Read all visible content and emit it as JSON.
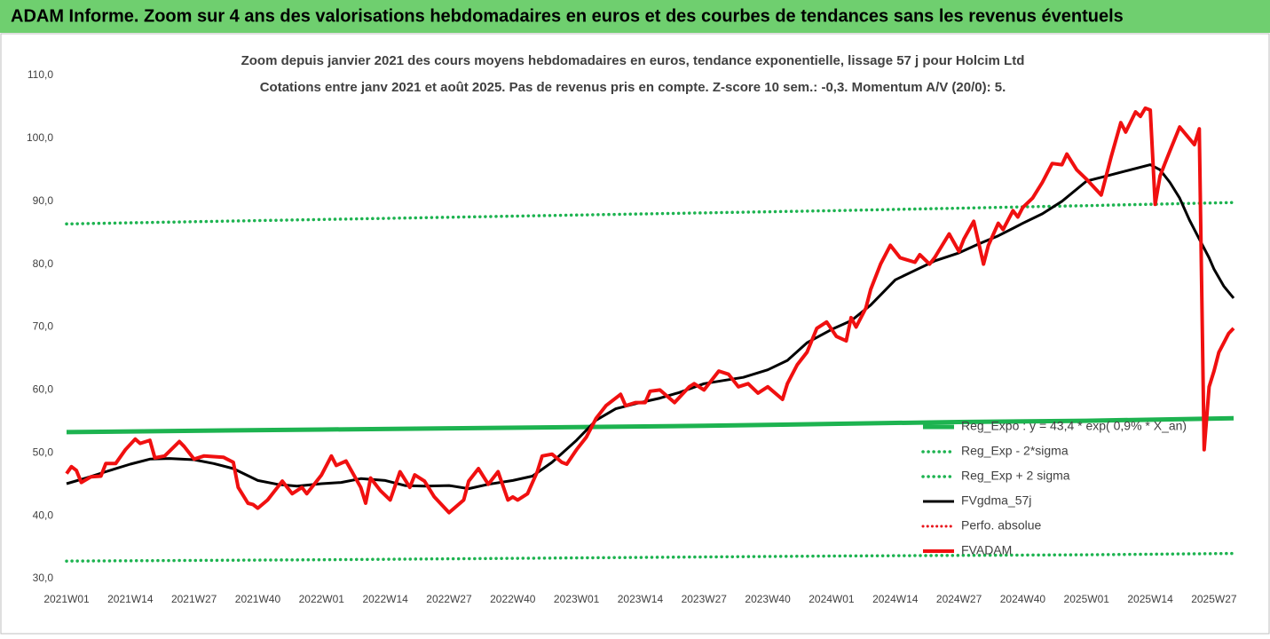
{
  "chart_data": {
    "type": "line",
    "title": "ADAM Informe. Zoom sur 4 ans des valorisations hebdomadaires en euros et des courbes de tendances sans les revenus éventuels",
    "subtitle": [
      "Zoom depuis janvier 2021 des cours moyens hebdomadaires en euros, tendance exponentielle, lissage 57 j pour Holcim Ltd",
      "Cotations entre janv 2021 et août 2025. Pas de revenus pris en compte. Z-score 10 sem.: -0,3. Momentum A/V (20/0): 5."
    ],
    "xlim": [
      0,
      238
    ],
    "xticks": [
      {
        "value": 0,
        "label": "2021W01"
      },
      {
        "value": 13,
        "label": "2021W14"
      },
      {
        "value": 26,
        "label": "2021W27"
      },
      {
        "value": 39,
        "label": "2021W40"
      },
      {
        "value": 52,
        "label": "2022W01"
      },
      {
        "value": 65,
        "label": "2022W14"
      },
      {
        "value": 78,
        "label": "2022W27"
      },
      {
        "value": 91,
        "label": "2022W40"
      },
      {
        "value": 104,
        "label": "2023W01"
      },
      {
        "value": 117,
        "label": "2023W14"
      },
      {
        "value": 130,
        "label": "2023W27"
      },
      {
        "value": 143,
        "label": "2023W40"
      },
      {
        "value": 156,
        "label": "2024W01"
      },
      {
        "value": 169,
        "label": "2024W14"
      },
      {
        "value": 182,
        "label": "2024W27"
      },
      {
        "value": 195,
        "label": "2024W40"
      },
      {
        "value": 208,
        "label": "2025W01"
      },
      {
        "value": 221,
        "label": "2025W14"
      },
      {
        "value": 234,
        "label": "2025W27"
      }
    ],
    "ylim": [
      30,
      110
    ],
    "yticks": [
      {
        "value": 30,
        "label": "30,0"
      },
      {
        "value": 40,
        "label": "40,0"
      },
      {
        "value": 50,
        "label": "50,0"
      },
      {
        "value": 60,
        "label": "60,0"
      },
      {
        "value": 70,
        "label": "70,0"
      },
      {
        "value": 80,
        "label": "80,0"
      },
      {
        "value": 90,
        "label": "90,0"
      },
      {
        "value": 100,
        "label": "100,0"
      },
      {
        "value": 110,
        "label": "110,0"
      }
    ],
    "grid": false,
    "legend": "lower right",
    "series": [
      {
        "name": "Reg_Expo : y = 43,4 * exp( 0,9% *  X_an)",
        "color": "#1db350",
        "style": "solid",
        "width": 5,
        "x": [
          0,
          26,
          52,
          78,
          104,
          130,
          156,
          182,
          208,
          238
        ],
        "values": [
          53.3,
          53.5,
          53.7,
          53.9,
          54.1,
          54.3,
          54.6,
          54.9,
          55.1,
          55.5
        ]
      },
      {
        "name": "Reg_Exp - 2*sigma",
        "color": "#1db350",
        "style": "dotted",
        "width": 3.5,
        "x": [
          0,
          52,
          104,
          156,
          208,
          238
        ],
        "values": [
          32.8,
          33.0,
          33.3,
          33.6,
          33.8,
          34.0
        ]
      },
      {
        "name": "Reg_Exp + 2 sigma",
        "color": "#1db350",
        "style": "dotted",
        "width": 3.5,
        "x": [
          0,
          52,
          104,
          156,
          208,
          238
        ],
        "values": [
          86.4,
          87.1,
          87.8,
          88.5,
          89.3,
          89.8
        ]
      },
      {
        "name": "FVgdma_57j",
        "color": "#000000",
        "style": "solid",
        "width": 3,
        "x": [
          0,
          4,
          8,
          13,
          17,
          21,
          26,
          30,
          34,
          39,
          43,
          47,
          52,
          56,
          60,
          65,
          69,
          73,
          78,
          82,
          86,
          91,
          95,
          99,
          104,
          108,
          112,
          117,
          121,
          125,
          130,
          134,
          138,
          143,
          147,
          151,
          156,
          160,
          164,
          169,
          173,
          177,
          182,
          186,
          190,
          195,
          199,
          203,
          208,
          212,
          216,
          221,
          223,
          225,
          227,
          229,
          231,
          233,
          234,
          236,
          238
        ],
        "values": [
          45.1,
          46.0,
          47.0,
          48.2,
          49.0,
          49.1,
          48.9,
          48.3,
          47.5,
          45.6,
          45.0,
          44.7,
          45.1,
          45.3,
          45.9,
          45.6,
          44.8,
          44.7,
          44.8,
          44.3,
          45.0,
          45.6,
          46.3,
          48.5,
          52.0,
          55.2,
          57.0,
          58.0,
          58.7,
          59.6,
          61.0,
          61.5,
          62.0,
          63.2,
          64.7,
          67.5,
          69.6,
          71.0,
          73.5,
          77.5,
          79.0,
          80.5,
          81.8,
          83.2,
          84.5,
          86.5,
          88.0,
          90.0,
          93.2,
          94.0,
          94.8,
          95.8,
          95.0,
          93.0,
          90.5,
          87.0,
          84.0,
          81.0,
          79.2,
          76.5,
          74.6
        ]
      },
      {
        "name": "Perfo. absolue",
        "color": "#e8141b",
        "style": "dotted",
        "width": 3,
        "x": [],
        "values": []
      },
      {
        "name": "FVADAM",
        "color": "#f01010",
        "style": "solid",
        "width": 4,
        "x": [
          0,
          1,
          2,
          3,
          5,
          7,
          8,
          10,
          12,
          14,
          15,
          17,
          18,
          20,
          23,
          24,
          26,
          28,
          32,
          34,
          35,
          37,
          38,
          39,
          41,
          43,
          44,
          46,
          48,
          49,
          52,
          54,
          55,
          57,
          60,
          61,
          62,
          64,
          66,
          68,
          70,
          71,
          73,
          75,
          78,
          81,
          82,
          84,
          86,
          88,
          90,
          91,
          92,
          94,
          96,
          97,
          99,
          101,
          102,
          104,
          106,
          108,
          110,
          113,
          114,
          116,
          118,
          119,
          121,
          124,
          127,
          128,
          130,
          133,
          135,
          137,
          139,
          141,
          143,
          146,
          147,
          149,
          151,
          153,
          155,
          157,
          159,
          160,
          161,
          163,
          164,
          166,
          168,
          170,
          173,
          174,
          176,
          177,
          180,
          182,
          183,
          185,
          187,
          188,
          190,
          191,
          193,
          194,
          195,
          197,
          199,
          201,
          203,
          204,
          206,
          208,
          211,
          213,
          215,
          216,
          218,
          219,
          220,
          221,
          222,
          223,
          224,
          225,
          227,
          230,
          231,
          232,
          233,
          234,
          235,
          237,
          238
        ],
        "values": [
          46.7,
          47.8,
          47.2,
          45.3,
          46.2,
          46.3,
          48.3,
          48.3,
          50.5,
          52.2,
          51.5,
          52.0,
          49.2,
          49.5,
          51.8,
          51.0,
          49.0,
          49.5,
          49.3,
          48.5,
          44.5,
          42.0,
          41.8,
          41.2,
          42.5,
          44.5,
          45.5,
          43.5,
          44.5,
          43.5,
          46.5,
          49.5,
          48.0,
          48.7,
          44.5,
          42.0,
          46.0,
          44.0,
          42.5,
          47.0,
          44.5,
          46.5,
          45.5,
          43.0,
          40.5,
          42.5,
          45.5,
          47.5,
          45.0,
          47.0,
          42.5,
          43.0,
          42.5,
          43.5,
          47.0,
          49.5,
          49.8,
          48.5,
          48.2,
          50.5,
          52.5,
          55.5,
          57.5,
          59.3,
          57.5,
          58.0,
          58.0,
          59.8,
          60.0,
          58.0,
          60.5,
          61.0,
          60.0,
          63.0,
          62.5,
          60.5,
          61.0,
          59.5,
          60.5,
          58.5,
          61.0,
          64.0,
          66.0,
          69.8,
          70.8,
          68.5,
          67.8,
          71.5,
          70.0,
          73.0,
          76.0,
          80.0,
          83.0,
          81.0,
          80.3,
          81.5,
          80.0,
          81.0,
          84.8,
          82.0,
          84.0,
          86.8,
          80.0,
          83.0,
          86.5,
          85.5,
          88.5,
          87.5,
          89.0,
          90.5,
          93.0,
          96.0,
          95.8,
          97.5,
          95.0,
          93.5,
          91.0,
          97.0,
          102.5,
          101.0,
          104.2,
          103.5,
          104.8,
          104.5,
          89.5,
          94.0,
          96.0,
          98.0,
          101.8,
          99.0,
          101.5,
          50.5,
          60.5,
          63.0,
          66.0,
          69.0,
          69.8
        ]
      }
    ]
  }
}
